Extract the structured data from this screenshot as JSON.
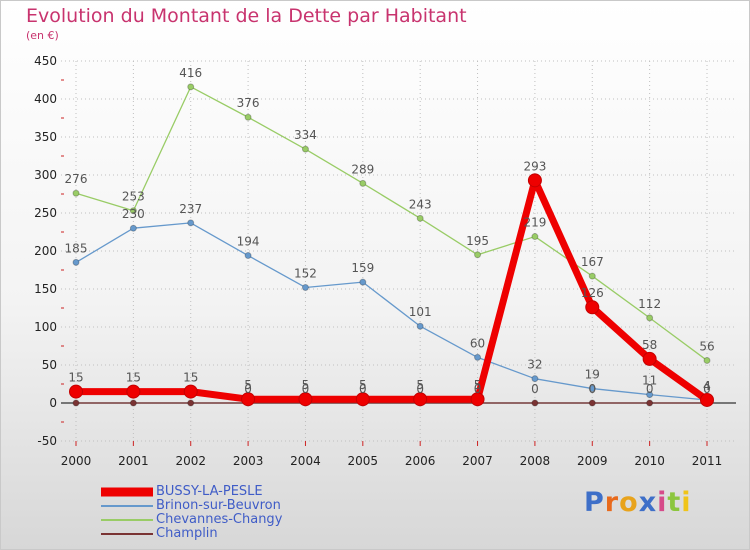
{
  "colors": {
    "title": "#c8336e",
    "legend_text": "#3f5cc7",
    "grid": "#bfbfbf",
    "axis_marks": "#cc2222",
    "zero_line": "#333333"
  },
  "brand": {
    "letters": [
      {
        "ch": "P",
        "color": "#3e6fc8"
      },
      {
        "ch": "r",
        "color": "#e86a1c"
      },
      {
        "ch": "o",
        "color": "#e8a31c"
      },
      {
        "ch": "x",
        "color": "#3e6fc8"
      },
      {
        "ch": "i",
        "color": "#d64a8a"
      },
      {
        "ch": "t",
        "color": "#8cc63e"
      },
      {
        "ch": "i",
        "color": "#f0c419"
      }
    ]
  },
  "chart_data": {
    "type": "line",
    "title": "Evolution du Montant de la Dette par Habitant",
    "subtitle": "(en €)",
    "xlabel": "",
    "ylabel": "",
    "x": [
      "2000",
      "2001",
      "2002",
      "2003",
      "2004",
      "2005",
      "2006",
      "2007",
      "2008",
      "2009",
      "2010",
      "2011"
    ],
    "ylim": [
      -50,
      450
    ],
    "yticks": [
      -50,
      0,
      50,
      100,
      150,
      200,
      250,
      300,
      350,
      400,
      450
    ],
    "grid": "horizontal dotted",
    "legend_position": "bottom-left",
    "series": [
      {
        "name": "BUSSY-LA-PESLE",
        "color": "#ee0000",
        "width": "thick",
        "values": [
          15,
          15,
          15,
          5,
          5,
          5,
          5,
          5,
          293,
          126,
          58,
          4
        ],
        "labels": [
          "15",
          "15",
          "15",
          "5",
          "5",
          "5",
          "5",
          "5",
          "293",
          "126",
          "58",
          "4"
        ]
      },
      {
        "name": "Brinon-sur-Beuvron",
        "color": "#6699cc",
        "width": "thin",
        "values": [
          185,
          230,
          237,
          194,
          152,
          159,
          101,
          60,
          32,
          19,
          11,
          4
        ],
        "labels": [
          "185",
          "230",
          "237",
          "194",
          "152",
          "159",
          "101",
          "60",
          "32",
          "19",
          "11",
          "4"
        ]
      },
      {
        "name": "Chevannes-Changy",
        "color": "#99cc66",
        "width": "thin",
        "values": [
          276,
          253,
          416,
          376,
          334,
          289,
          243,
          195,
          219,
          167,
          112,
          56
        ],
        "labels": [
          "276",
          "253",
          "416",
          "376",
          "334",
          "289",
          "243",
          "195",
          "219",
          "167",
          "112",
          "56"
        ]
      },
      {
        "name": "Champlin",
        "color": "#7a3333",
        "width": "thin",
        "values": [
          0,
          0,
          0,
          0,
          0,
          0,
          0,
          0,
          0,
          0,
          0,
          0
        ],
        "labels": [
          "",
          "",
          "",
          "0",
          "0",
          "0",
          "0",
          "0",
          "0",
          "0",
          "0",
          "0"
        ]
      }
    ]
  }
}
